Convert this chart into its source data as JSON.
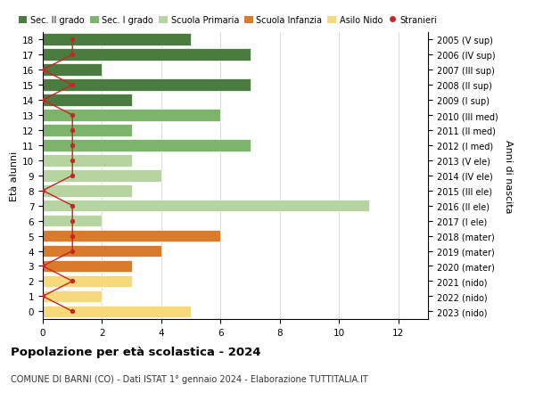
{
  "ages": [
    18,
    17,
    16,
    15,
    14,
    13,
    12,
    11,
    10,
    9,
    8,
    7,
    6,
    5,
    4,
    3,
    2,
    1,
    0
  ],
  "right_labels": [
    "2005 (V sup)",
    "2006 (IV sup)",
    "2007 (III sup)",
    "2008 (II sup)",
    "2009 (I sup)",
    "2010 (III med)",
    "2011 (II med)",
    "2012 (I med)",
    "2013 (V ele)",
    "2014 (IV ele)",
    "2015 (III ele)",
    "2016 (II ele)",
    "2017 (I ele)",
    "2018 (mater)",
    "2019 (mater)",
    "2020 (mater)",
    "2021 (nido)",
    "2022 (nido)",
    "2023 (nido)"
  ],
  "bar_values": [
    5,
    7,
    2,
    7,
    3,
    6,
    3,
    7,
    3,
    4,
    3,
    11,
    2,
    6,
    4,
    3,
    3,
    2,
    5
  ],
  "bar_colors": [
    "#4a7c3f",
    "#4a7c3f",
    "#4a7c3f",
    "#4a7c3f",
    "#4a7c3f",
    "#7db46c",
    "#7db46c",
    "#7db46c",
    "#b5d4a0",
    "#b5d4a0",
    "#b5d4a0",
    "#b5d4a0",
    "#b5d4a0",
    "#d97b2a",
    "#d97b2a",
    "#d97b2a",
    "#f5d97a",
    "#f5d97a",
    "#f5d97a"
  ],
  "stranieri_values": [
    1,
    1,
    0,
    1,
    0,
    1,
    1,
    1,
    1,
    1,
    0,
    1,
    1,
    1,
    1,
    0,
    1,
    0,
    1
  ],
  "legend_labels": [
    "Sec. II grado",
    "Sec. I grado",
    "Scuola Primaria",
    "Scuola Infanzia",
    "Asilo Nido",
    "Stranieri"
  ],
  "legend_colors": [
    "#4a7c3f",
    "#7db46c",
    "#b5d4a0",
    "#d97b2a",
    "#f5d97a",
    "#cc2222"
  ],
  "title": "Popolazione per età scolastica - 2024",
  "subtitle": "COMUNE DI BARNI (CO) - Dati ISTAT 1° gennaio 2024 - Elaborazione TUTTITALIA.IT",
  "ylabel_left": "Età alunni",
  "ylabel_right": "Anni di nascita",
  "xlim": [
    0,
    13
  ],
  "xticks": [
    0,
    2,
    4,
    6,
    8,
    10,
    12
  ],
  "background_color": "#ffffff",
  "bar_edge_color": "#ffffff",
  "grid_color": "#cccccc"
}
